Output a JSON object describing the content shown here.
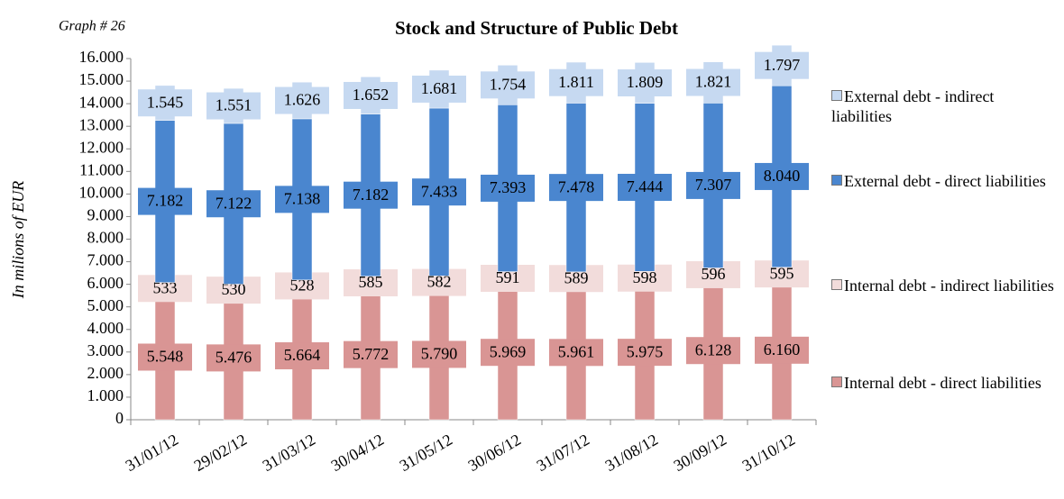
{
  "chart_data": {
    "type": "stacked_bar",
    "title": "Stock and Structure of Public Debt",
    "subtitle": "Graph # 26",
    "y_label": "In milions of EUR",
    "categories": [
      "31/01/12",
      "29/02/12",
      "31/03/12",
      "30/04/12",
      "31/05/12",
      "30/06/12",
      "31/07/12",
      "31/08/12",
      "30/09/12",
      "31/10/12"
    ],
    "series": [
      {
        "name": "Internal debt - direct liabilities",
        "color": "#d99594",
        "values": [
          5548,
          5476,
          5664,
          5772,
          5790,
          5969,
          5961,
          5975,
          6128,
          6160
        ],
        "value_labels": [
          "5.548",
          "5.476",
          "5.664",
          "5.772",
          "5.790",
          "5.969",
          "5.961",
          "5.975",
          "6.128",
          "6.160"
        ]
      },
      {
        "name": "Internal debt - indirect liabilities",
        "color": "#f2dcdb",
        "values": [
          533,
          530,
          528,
          585,
          582,
          591,
          589,
          598,
          596,
          595
        ]
      },
      {
        "name": "External debt - direct liabilities",
        "color": "#4a86cf",
        "values": [
          7182,
          7122,
          7138,
          7182,
          7433,
          7393,
          7478,
          7444,
          7307,
          8040
        ],
        "value_labels": [
          "7.182",
          "7.122",
          "7.138",
          "7.182",
          "7.433",
          "7.393",
          "7.478",
          "7.444",
          "7.307",
          "8.040"
        ]
      },
      {
        "name": "External debt - indirect liabilities",
        "color": "#c6d9f1",
        "values": [
          1545,
          1551,
          1626,
          1652,
          1681,
          1754,
          1811,
          1809,
          1821,
          1797
        ],
        "value_labels": [
          "1.545",
          "1.551",
          "1.626",
          "1.652",
          "1.681",
          "1.754",
          "1.811",
          "1.809",
          "1.821",
          "1.797"
        ]
      }
    ],
    "ylim": [
      0,
      16000
    ],
    "yticks": [
      0,
      {
        "value": 1000,
        "label": "1.000"
      },
      {
        "value": 2000,
        "label": "2.000"
      },
      {
        "value": 3000,
        "label": "3.000"
      },
      {
        "value": 4000,
        "label": "4.000"
      },
      {
        "value": 5000,
        "label": "5.000"
      },
      {
        "value": 6000,
        "label": "6.000"
      },
      {
        "value": 7000,
        "label": "7.000"
      },
      {
        "value": 8000,
        "label": "8.000"
      },
      {
        "value": 9000,
        "label": "9.000"
      },
      {
        "value": 10000,
        "label": "10.000"
      },
      {
        "value": 11000,
        "label": "11.000"
      },
      {
        "value": 12000,
        "label": "12.000"
      },
      {
        "value": 13000,
        "label": "13.000"
      },
      {
        "value": 14000,
        "label": "14.000"
      },
      {
        "value": 15000,
        "label": "15.000"
      },
      {
        "value": 16000,
        "label": "16.000"
      }
    ],
    "grid": false,
    "legend": "right"
  }
}
